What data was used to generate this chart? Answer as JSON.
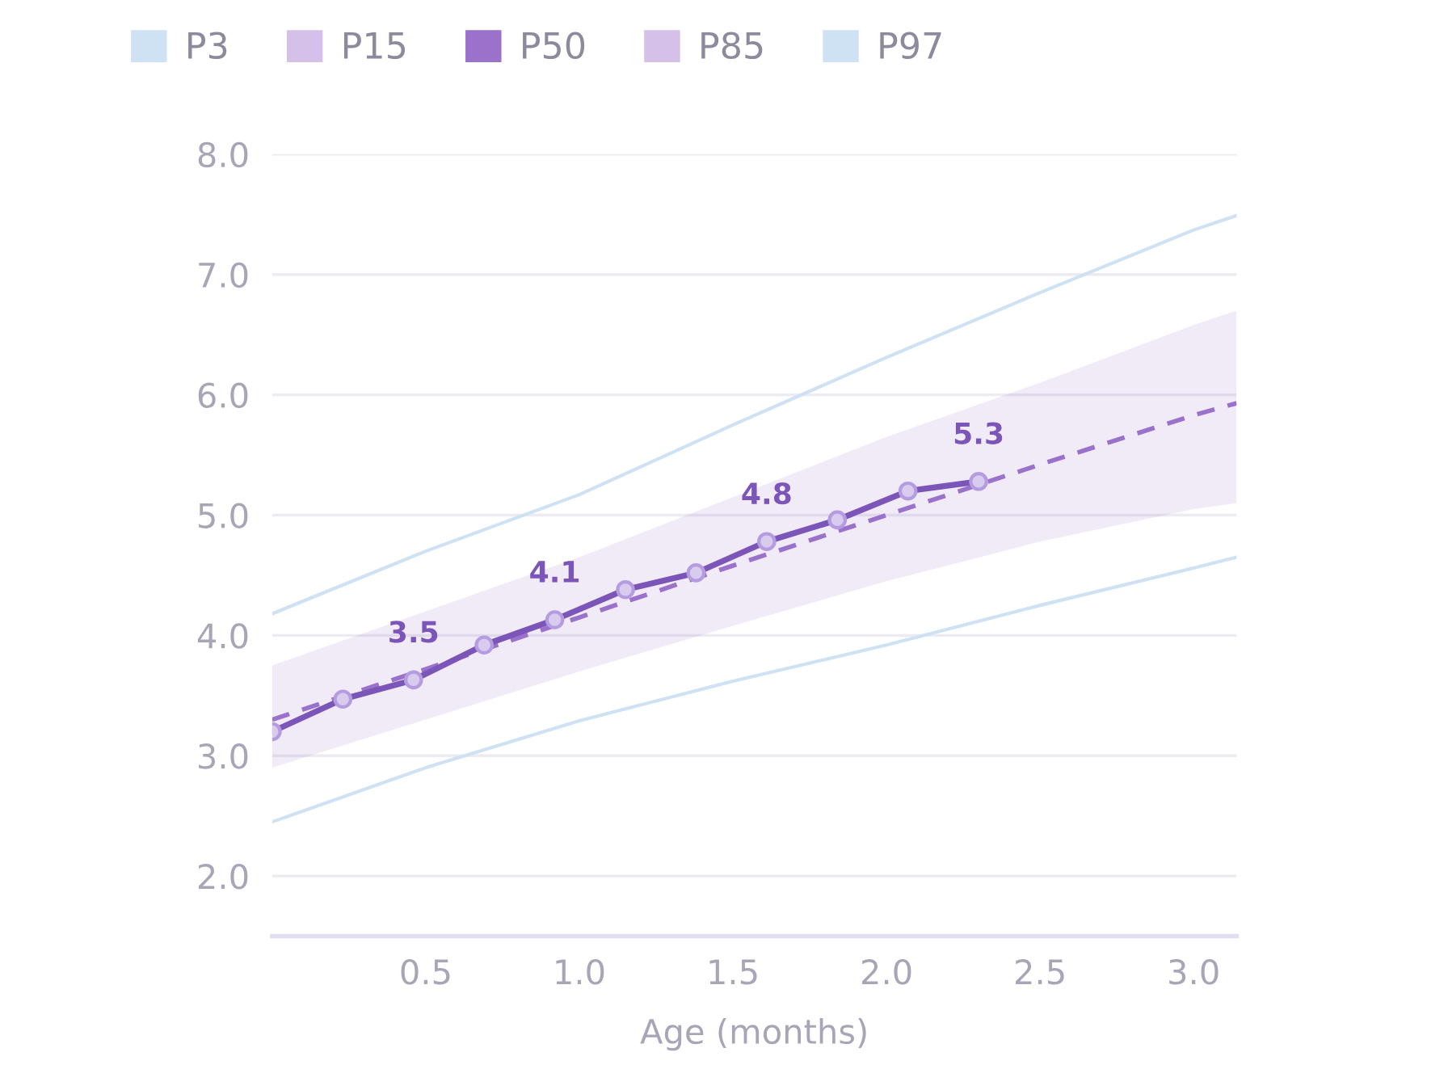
{
  "chart_data": {
    "type": "line",
    "xlabel": "Age (months)",
    "series": [
      {
        "name": "P3",
        "color": "#cfe2f3",
        "x": [
          0,
          0.5,
          1,
          1.5,
          2,
          2.5,
          3,
          3.14
        ],
        "values": [
          2.45,
          2.9,
          3.29,
          3.62,
          3.92,
          4.25,
          4.56,
          4.65
        ]
      },
      {
        "name": "P15",
        "color": "#d4c0e8"
      },
      {
        "name": "P50",
        "line_style": "dashed",
        "color": "#9b72cb",
        "x": [
          0,
          0.5,
          1,
          1.5,
          2,
          2.5,
          3,
          3.14
        ],
        "values": [
          3.3,
          3.72,
          4.15,
          4.58,
          5.0,
          5.42,
          5.83,
          5.93
        ],
        "lower": [
          2.9,
          3.3,
          3.7,
          4.08,
          4.45,
          4.78,
          5.05,
          5.1
        ],
        "upper": [
          3.75,
          4.2,
          4.65,
          5.15,
          5.65,
          6.1,
          6.58,
          6.7
        ]
      },
      {
        "name": "P85",
        "color": "#d4c0e8"
      },
      {
        "name": "P97",
        "color": "#cfe2f3",
        "x": [
          0,
          0.5,
          1,
          1.5,
          2,
          2.5,
          3,
          3.14
        ],
        "values": [
          4.18,
          4.7,
          5.17,
          5.75,
          6.31,
          6.85,
          7.37,
          7.49
        ]
      },
      {
        "line_style": "solid",
        "marker": "circle",
        "color": "#7c55b8",
        "x": [
          0,
          0.23,
          0.46,
          0.69,
          0.92,
          1.15,
          1.38,
          1.61,
          1.84,
          2.07,
          2.3
        ],
        "values": [
          3.2,
          3.47,
          3.63,
          3.92,
          4.13,
          4.38,
          4.52,
          4.78,
          4.96,
          5.2,
          5.28
        ]
      }
    ],
    "annotations": [
      {
        "text": "3.5",
        "x": 0.46,
        "y": 3.63
      },
      {
        "text": "4.1",
        "x": 0.92,
        "y": 4.13
      },
      {
        "text": "4.8",
        "x": 1.61,
        "y": 4.78
      },
      {
        "text": "5.3",
        "x": 2.3,
        "y": 5.28
      }
    ],
    "xlim": [
      0,
      3.14
    ],
    "ylim": [
      1.5,
      8.0
    ],
    "xticks": [
      {
        "value": 0.5,
        "label": "0.5"
      },
      {
        "value": 1,
        "label": "1.0"
      },
      {
        "value": 1.5,
        "label": "1.5"
      },
      {
        "value": 2,
        "label": "2.0"
      },
      {
        "value": 2.5,
        "label": "2.5"
      },
      {
        "value": 3,
        "label": "3.0"
      }
    ],
    "yticks": [
      {
        "value": 2,
        "label": "2.0"
      },
      {
        "value": 3,
        "label": "3.0"
      },
      {
        "value": 4,
        "label": "4.0"
      },
      {
        "value": 5,
        "label": "5.0"
      },
      {
        "value": 6,
        "label": "6.0"
      },
      {
        "value": 7,
        "label": "7.0"
      },
      {
        "value": 8,
        "label": "8.0"
      }
    ],
    "grid": "y",
    "legend": "top"
  }
}
